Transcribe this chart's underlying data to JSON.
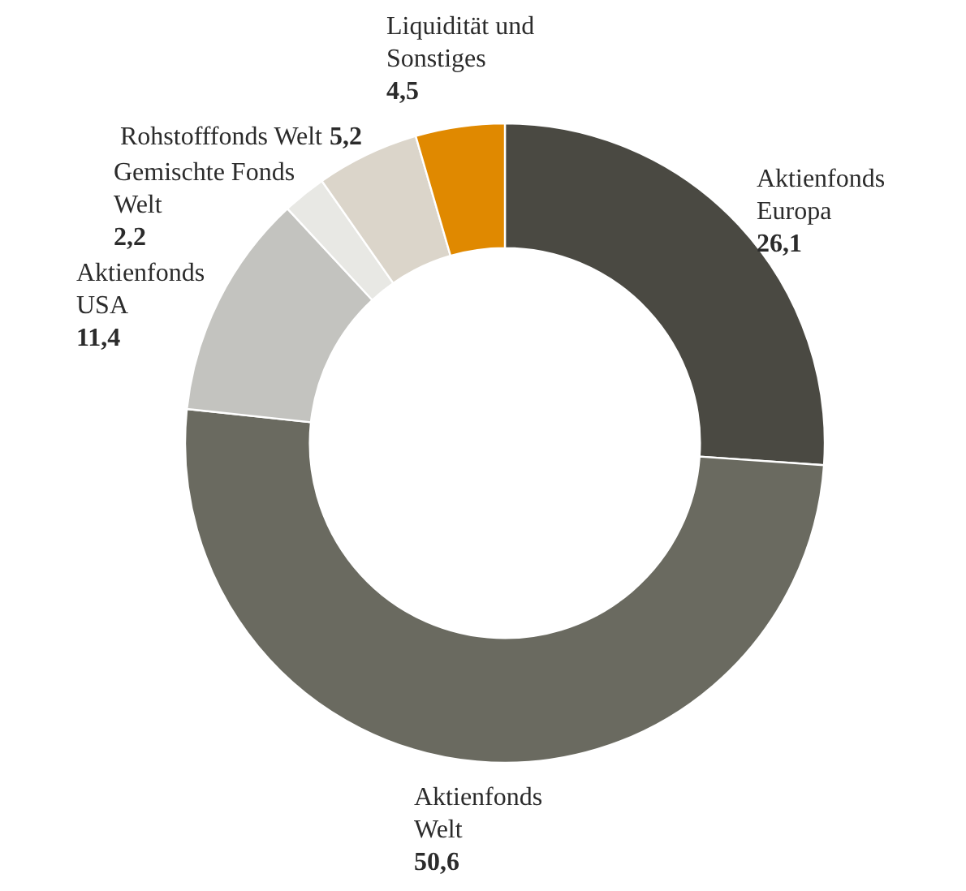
{
  "chart_data": {
    "type": "donut",
    "categories": [
      "Aktienfonds\nEuropa",
      "Aktienfonds\nWelt",
      "Aktienfonds\nUSA",
      "Gemischte Fonds\nWelt",
      "Rohstofffonds Welt",
      "Liquidität und\nSonstiges"
    ],
    "values": [
      26.1,
      50.6,
      11.4,
      2.2,
      5.2,
      4.5
    ],
    "value_labels": [
      "26,1",
      "50,6",
      "11,4",
      "2,2",
      "5,2",
      "4,5"
    ],
    "colors": [
      "#4a4942",
      "#6a6a60",
      "#c3c3bf",
      "#e8e8e4",
      "#dbd5ca",
      "#e08900"
    ]
  }
}
